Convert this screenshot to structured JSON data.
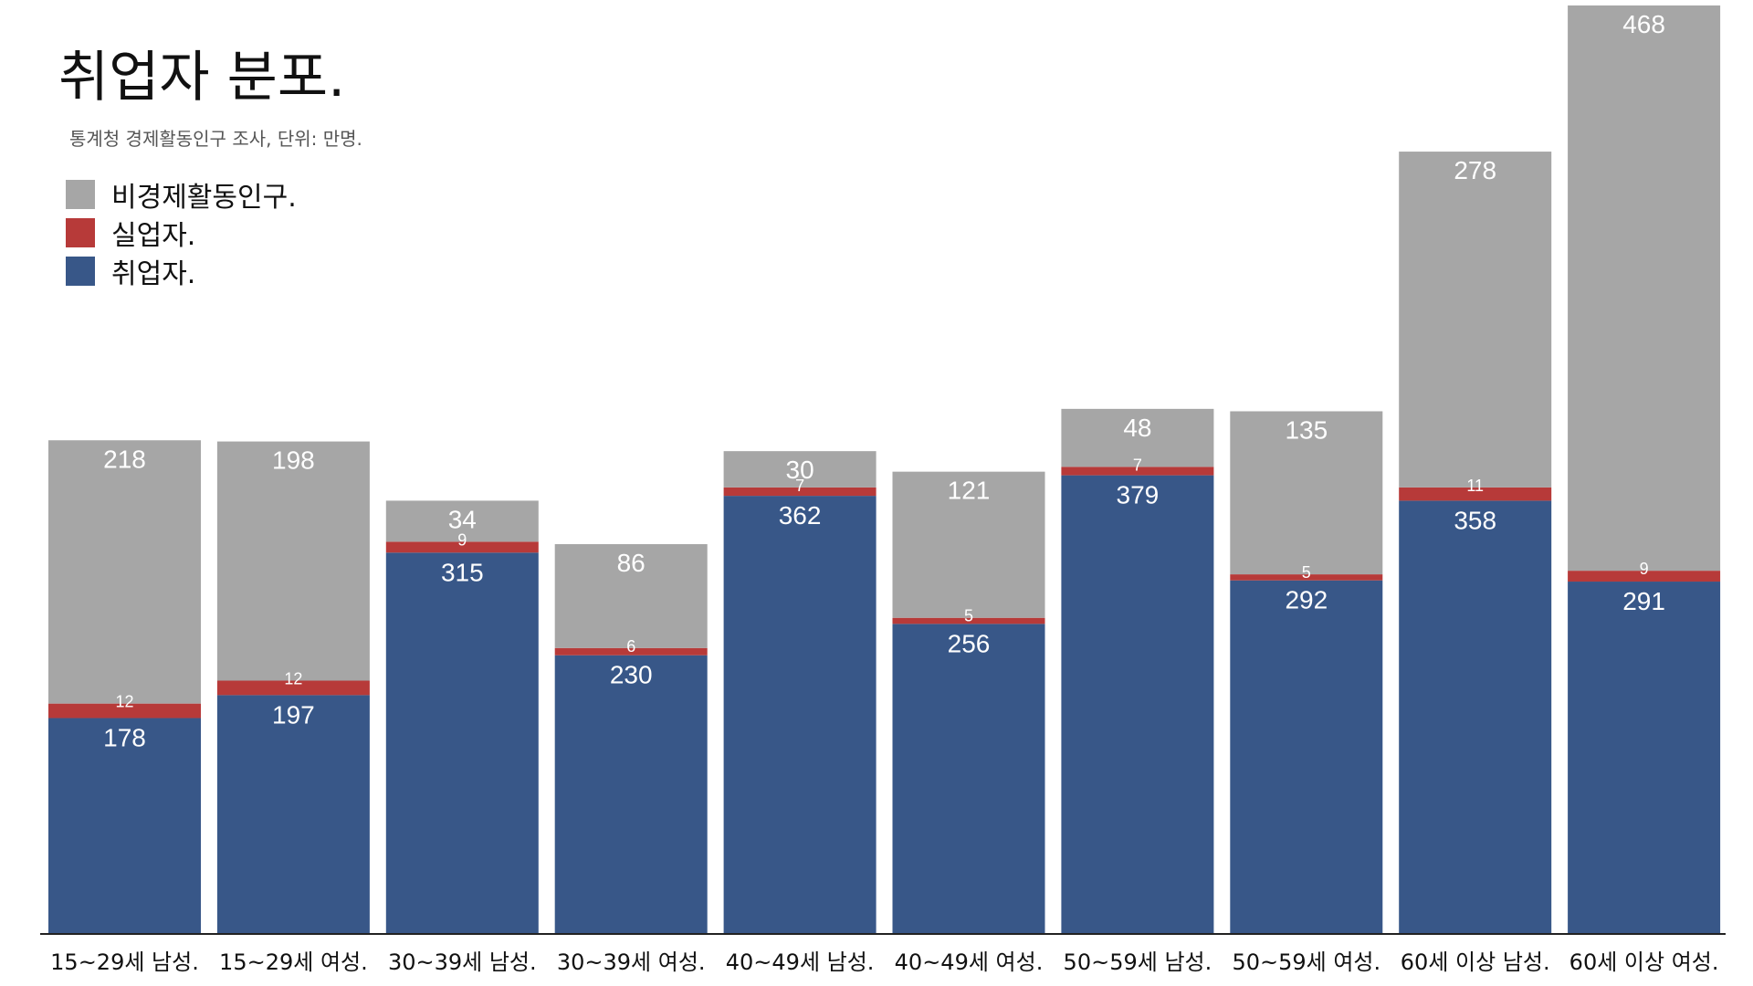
{
  "colors": {
    "nonactive": "#a6a6a6",
    "unemployed": "#b73a39",
    "employed": "#385788"
  },
  "chart_data": {
    "type": "bar",
    "stacked": true,
    "title": "취업자 분포.",
    "subtitle": "통계청 경제활동인구 조사, 단위: 만명.",
    "legend_position": "top-left",
    "grid": false,
    "categories": [
      "15~29세 남성.",
      "15~29세 여성.",
      "30~39세 남성.",
      "30~39세 여성.",
      "40~49세 남성.",
      "40~49세 여성.",
      "50~59세 남성.",
      "50~59세 여성.",
      "60세 이상 남성.",
      "60세 이상 여성."
    ],
    "series": [
      {
        "name": "취업자.",
        "values": [
          178,
          197,
          315,
          230,
          362,
          256,
          379,
          292,
          358,
          291
        ]
      },
      {
        "name": "실업자.",
        "values": [
          12,
          12,
          9,
          6,
          7,
          5,
          7,
          5,
          11,
          9
        ]
      },
      {
        "name": "비경제활동인구.",
        "values": [
          218,
          198,
          34,
          86,
          30,
          121,
          48,
          135,
          278,
          468
        ]
      }
    ],
    "ylim": [
      0,
      768
    ]
  },
  "legend": [
    {
      "label": "비경제활동인구.",
      "color": "#a6a6a6"
    },
    {
      "label": "실업자.",
      "color": "#b73a39"
    },
    {
      "label": "취업자.",
      "color": "#385788"
    }
  ]
}
